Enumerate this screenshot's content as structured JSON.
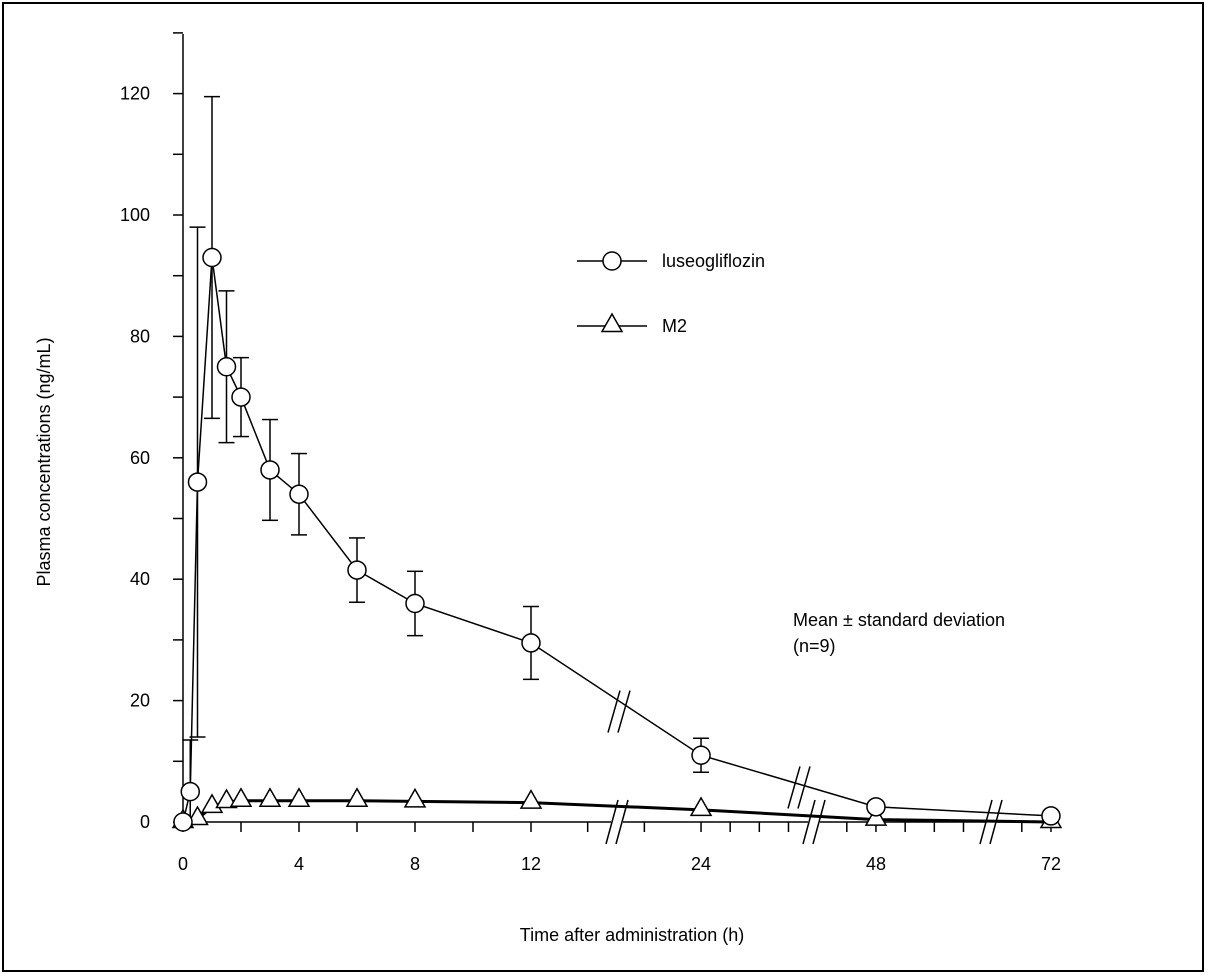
{
  "chart_data": {
    "type": "line",
    "xlabel": "Time after administration (h)",
    "ylabel": "Plasma concentrations (ng/mL)",
    "ylim": [
      0,
      130
    ],
    "y_ticks": [
      0,
      20,
      40,
      60,
      80,
      100,
      120
    ],
    "x_ticks": [
      0,
      4,
      8,
      12,
      24,
      48,
      72
    ],
    "x_axis_breaks": "between 12 and 24, between 24 and 48, between 48 and 72",
    "legend_position": "upper-middle",
    "annotation": {
      "line1": "Mean ± standard deviation",
      "line2": "(n=9)"
    },
    "series": [
      {
        "name": "luseogliflozin",
        "marker": "circle",
        "points": [
          {
            "x": 0,
            "y": 0
          },
          {
            "x": 0.25,
            "y": 5,
            "sd": 8.5
          },
          {
            "x": 0.5,
            "y": 56,
            "sd": 42
          },
          {
            "x": 1,
            "y": 93,
            "sd": 26.5
          },
          {
            "x": 1.5,
            "y": 75,
            "sd": 12.5
          },
          {
            "x": 2,
            "y": 70,
            "sd": 6.5
          },
          {
            "x": 3,
            "y": 58,
            "sd": 8.3
          },
          {
            "x": 4,
            "y": 54,
            "sd": 6.7
          },
          {
            "x": 6,
            "y": 41.5,
            "sd": 5.3
          },
          {
            "x": 8,
            "y": 36,
            "sd": 5.3
          },
          {
            "x": 12,
            "y": 29.5,
            "sd": 6
          },
          {
            "x": 24,
            "y": 11,
            "sd": 2.8
          },
          {
            "x": 48,
            "y": 2.5
          },
          {
            "x": 72,
            "y": 1
          }
        ]
      },
      {
        "name": "M2",
        "marker": "triangle",
        "points": [
          {
            "x": 0,
            "y": 0
          },
          {
            "x": 0.5,
            "y": 0.5
          },
          {
            "x": 1,
            "y": 2.5
          },
          {
            "x": 1.5,
            "y": 3.3
          },
          {
            "x": 2,
            "y": 3.5
          },
          {
            "x": 3,
            "y": 3.5
          },
          {
            "x": 4,
            "y": 3.5
          },
          {
            "x": 6,
            "y": 3.5
          },
          {
            "x": 8,
            "y": 3.4
          },
          {
            "x": 12,
            "y": 3.2
          },
          {
            "x": 24,
            "y": 2
          },
          {
            "x": 48,
            "y": 0.4
          },
          {
            "x": 72,
            "y": 0
          }
        ]
      }
    ]
  }
}
